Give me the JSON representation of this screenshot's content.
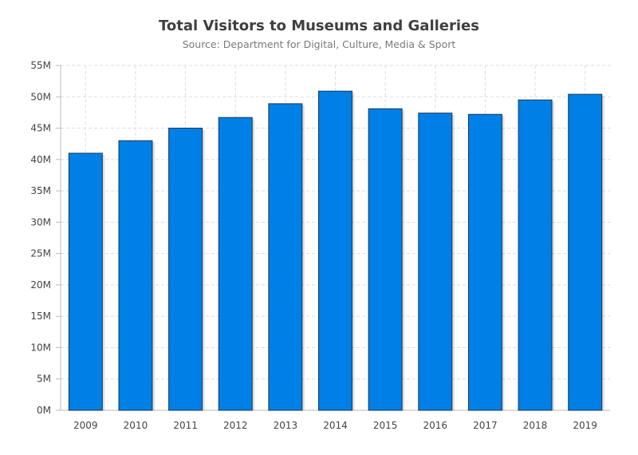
{
  "chart_data": {
    "type": "bar",
    "title": "Total Visitors to Museums and Galleries",
    "subtitle": "Source: Department for Digital, Culture, Media & Sport",
    "xlabel": "",
    "ylabel": "",
    "categories": [
      "2009",
      "2010",
      "2011",
      "2012",
      "2013",
      "2014",
      "2015",
      "2016",
      "2017",
      "2018",
      "2019"
    ],
    "values": [
      41000000,
      43000000,
      45000000,
      46700000,
      48900000,
      50900000,
      48100000,
      47400000,
      47200000,
      49500000,
      50400000
    ],
    "ylim": [
      0,
      55000000
    ],
    "yticks": [
      0,
      5000000,
      10000000,
      15000000,
      20000000,
      25000000,
      30000000,
      35000000,
      40000000,
      45000000,
      50000000,
      55000000
    ],
    "ytick_labels": [
      "0M",
      "5M",
      "10M",
      "15M",
      "20M",
      "25M",
      "30M",
      "35M",
      "40M",
      "45M",
      "50M",
      "55M"
    ],
    "grid": true,
    "legend": "none",
    "colors": {
      "bar": "#0080e6",
      "bar_stroke": "#1a3550",
      "grid": "#dddddd",
      "axis": "#bbbbbb"
    }
  }
}
